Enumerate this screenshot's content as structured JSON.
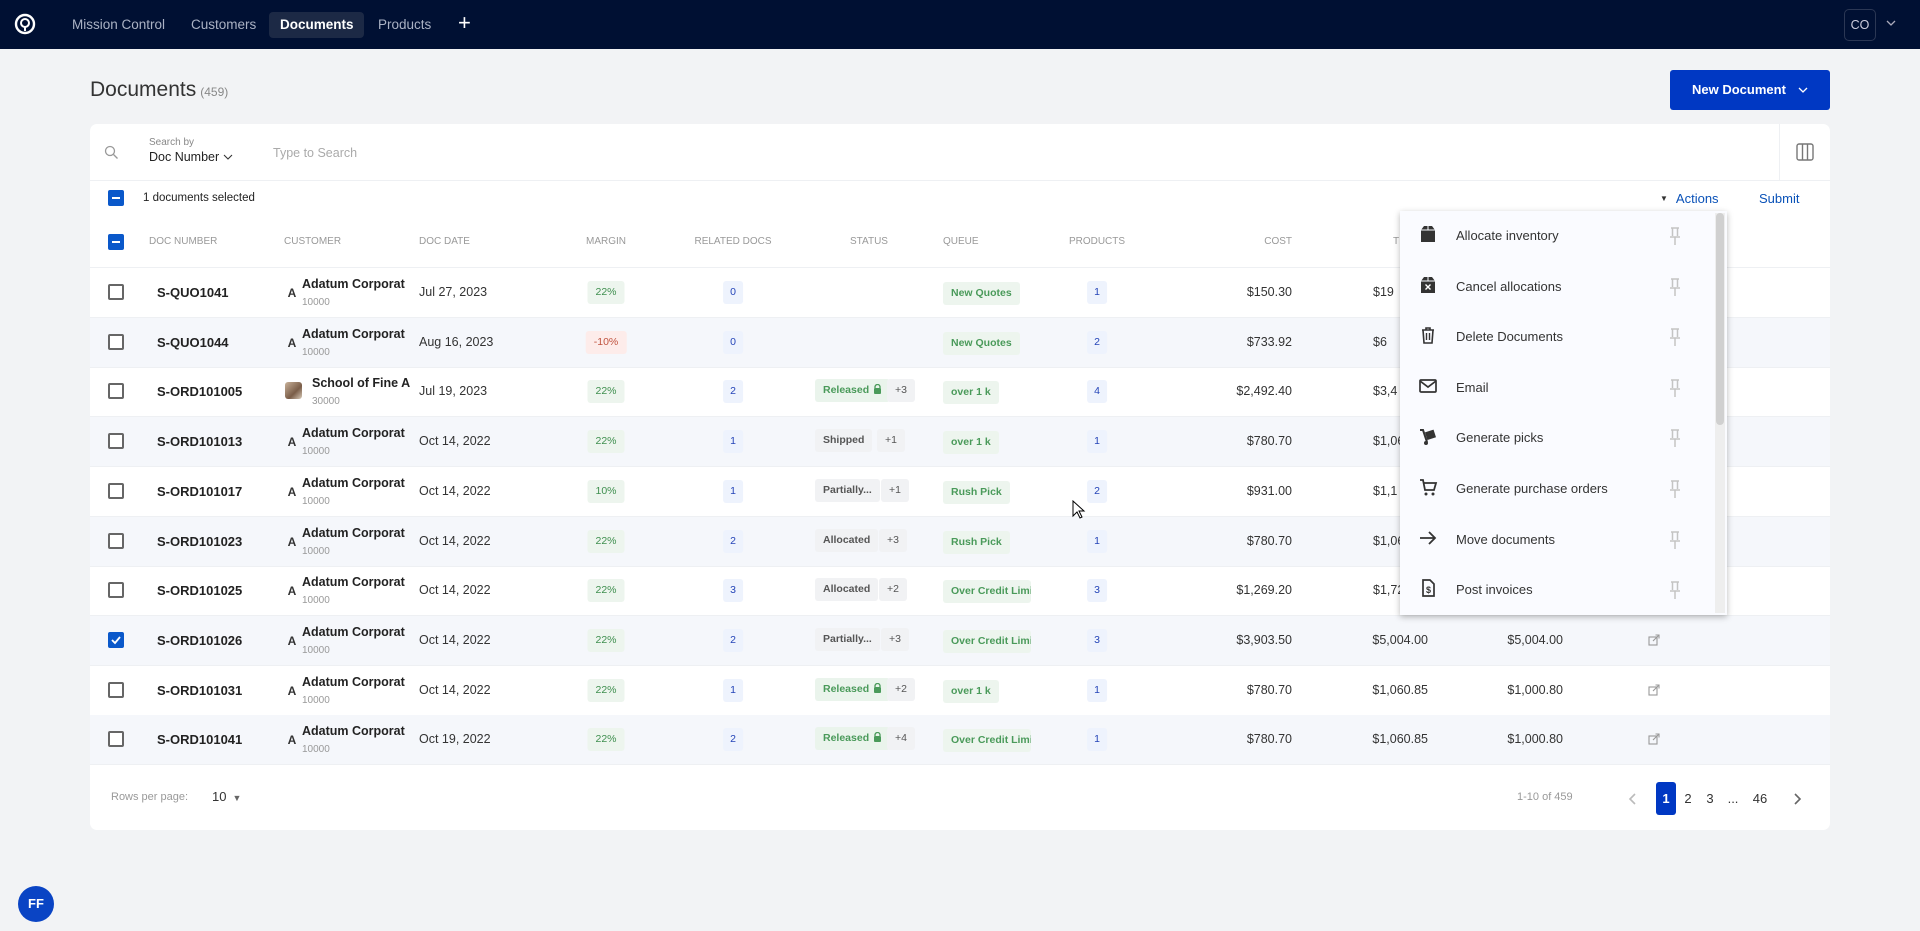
{
  "nav": {
    "items": [
      "Mission Control",
      "Customers",
      "Documents",
      "Products"
    ],
    "active": "Documents",
    "user_initials": "CO"
  },
  "page": {
    "title": "Documents",
    "count": "(459)",
    "new_button": "New Document"
  },
  "search": {
    "by_label": "Search by",
    "field": "Doc Number",
    "placeholder": "Type to Search"
  },
  "selection": {
    "text": "1 documents selected",
    "actions": "Actions",
    "submit": "Submit"
  },
  "columns": [
    "DOC NUMBER",
    "CUSTOMER",
    "DOC DATE",
    "MARGIN",
    "RELATED DOCS",
    "STATUS",
    "QUEUE",
    "PRODUCTS",
    "COST",
    "T"
  ],
  "rows": [
    {
      "doc": "S-QUO1041",
      "avatar": "A",
      "customer": "Adatum Corporati",
      "cid": "10000",
      "date": "Jul 27, 2023",
      "margin": "22%",
      "neg": false,
      "related": "0",
      "status": "",
      "released": false,
      "more": "",
      "queue": "New Quotes",
      "products": "1",
      "cost": "$150.30",
      "total": "$19",
      "amt3": "",
      "checked": false
    },
    {
      "doc": "S-QUO1044",
      "avatar": "A",
      "customer": "Adatum Corporati",
      "cid": "10000",
      "date": "Aug 16, 2023",
      "margin": "-10%",
      "neg": true,
      "related": "0",
      "status": "",
      "released": false,
      "more": "",
      "queue": "New Quotes",
      "products": "2",
      "cost": "$733.92",
      "total": "$6",
      "amt3": "",
      "checked": false
    },
    {
      "doc": "S-ORD101005",
      "avatar": "photo",
      "customer": "School of Fine A",
      "cid": "30000",
      "date": "Jul 19, 2023",
      "margin": "22%",
      "neg": false,
      "related": "2",
      "status": "Released",
      "released": true,
      "more": "+3",
      "queue": "over 1 k",
      "products": "4",
      "cost": "$2,492.40",
      "total": "$3,4",
      "amt3": "",
      "checked": false
    },
    {
      "doc": "S-ORD101013",
      "avatar": "A",
      "customer": "Adatum Corporati",
      "cid": "10000",
      "date": "Oct 14, 2022",
      "margin": "22%",
      "neg": false,
      "related": "1",
      "status": "Shipped",
      "released": false,
      "more": "+1",
      "queue": "over 1 k",
      "products": "1",
      "cost": "$780.70",
      "total": "$1,06",
      "amt3": "",
      "checked": false
    },
    {
      "doc": "S-ORD101017",
      "avatar": "A",
      "customer": "Adatum Corporati",
      "cid": "10000",
      "date": "Oct 14, 2022",
      "margin": "10%",
      "neg": false,
      "related": "1",
      "status": "Partially...",
      "released": false,
      "more": "+1",
      "queue": "Rush Pick",
      "products": "2",
      "cost": "$931.00",
      "total": "$1,1",
      "amt3": "",
      "checked": false
    },
    {
      "doc": "S-ORD101023",
      "avatar": "A",
      "customer": "Adatum Corporati",
      "cid": "10000",
      "date": "Oct 14, 2022",
      "margin": "22%",
      "neg": false,
      "related": "2",
      "status": "Allocated",
      "released": false,
      "more": "+3",
      "queue": "Rush Pick",
      "products": "1",
      "cost": "$780.70",
      "total": "$1,06",
      "amt3": "",
      "checked": false
    },
    {
      "doc": "S-ORD101025",
      "avatar": "A",
      "customer": "Adatum Corporati",
      "cid": "10000",
      "date": "Oct 14, 2022",
      "margin": "22%",
      "neg": false,
      "related": "3",
      "status": "Allocated",
      "released": false,
      "more": "+2",
      "queue": "Over Credit Limit",
      "products": "3",
      "cost": "$1,269.20",
      "total": "$1,72",
      "amt3": "",
      "checked": false
    },
    {
      "doc": "S-ORD101026",
      "avatar": "A",
      "customer": "Adatum Corporati",
      "cid": "10000",
      "date": "Oct 14, 2022",
      "margin": "22%",
      "neg": false,
      "related": "2",
      "status": "Partially...",
      "released": false,
      "more": "+3",
      "queue": "Over Credit Limit",
      "products": "3",
      "cost": "$3,903.50",
      "total": "$5,004.00",
      "amt3": "$5,004.00",
      "checked": true
    },
    {
      "doc": "S-ORD101031",
      "avatar": "A",
      "customer": "Adatum Corporati",
      "cid": "10000",
      "date": "Oct 14, 2022",
      "margin": "22%",
      "neg": false,
      "related": "1",
      "status": "Released",
      "released": true,
      "more": "+2",
      "queue": "over 1 k",
      "products": "1",
      "cost": "$780.70",
      "total": "$1,060.85",
      "amt3": "$1,000.80",
      "checked": false
    },
    {
      "doc": "S-ORD101041",
      "avatar": "A",
      "customer": "Adatum Corporati",
      "cid": "10000",
      "date": "Oct 19, 2022",
      "margin": "22%",
      "neg": false,
      "related": "2",
      "status": "Released",
      "released": true,
      "more": "+4",
      "queue": "Over Credit Limit",
      "products": "1",
      "cost": "$780.70",
      "total": "$1,060.85",
      "amt3": "$1,000.80",
      "checked": false
    }
  ],
  "footer": {
    "rows_label": "Rows per page:",
    "rows_value": "10",
    "range": "1-10 of 459",
    "pages": [
      "1",
      "2",
      "3",
      "...",
      "46"
    ],
    "current": "1"
  },
  "menu": {
    "items": [
      {
        "label": "Allocate inventory",
        "icon": "box-icon"
      },
      {
        "label": "Cancel allocations",
        "icon": "box-cancel-icon"
      },
      {
        "label": "Delete Documents",
        "icon": "trash-icon"
      },
      {
        "label": "Email",
        "icon": "mail-icon"
      },
      {
        "label": "Generate picks",
        "icon": "hand-truck-icon"
      },
      {
        "label": "Generate purchase orders",
        "icon": "cart-icon"
      },
      {
        "label": "Move documents",
        "icon": "arrow-right-icon"
      },
      {
        "label": "Post invoices",
        "icon": "invoice-icon"
      }
    ]
  },
  "bottom_avatar": "FF",
  "colors": {
    "nav_bg": "#001033",
    "primary": "#0038c3",
    "link": "#0a52b8",
    "checkbox": "#0a58ca"
  }
}
